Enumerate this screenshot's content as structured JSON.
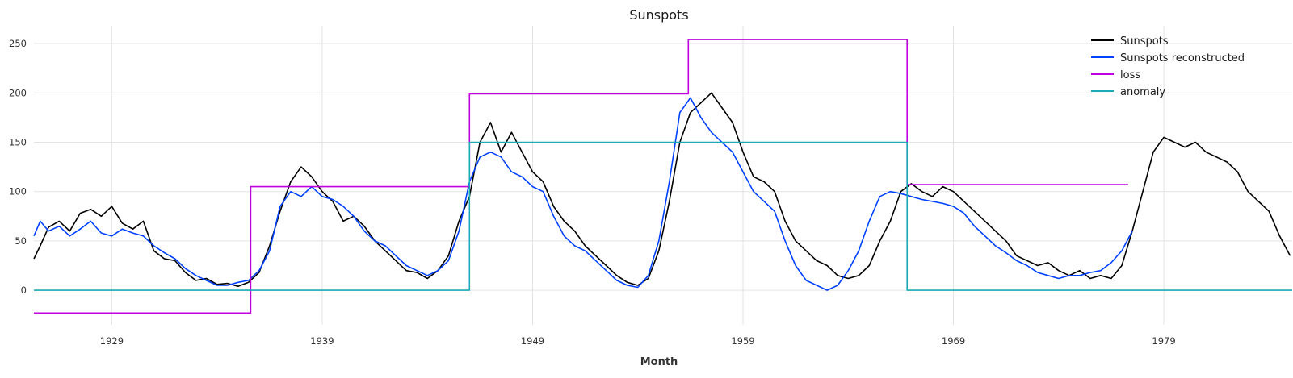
{
  "chart_data": {
    "type": "line",
    "title": "Sunspots",
    "xlabel": "Month",
    "ylabel": "",
    "xlim": [
      1925.3,
      1985.1
    ],
    "ylim": [
      -35,
      268
    ],
    "grid": true,
    "legend_position": "top-right",
    "x_ticks": [
      {
        "value": 1929,
        "label": "1929"
      },
      {
        "value": 1939,
        "label": "1939"
      },
      {
        "value": 1949,
        "label": "1949"
      },
      {
        "value": 1959,
        "label": "1959"
      },
      {
        "value": 1969,
        "label": "1969"
      },
      {
        "value": 1979,
        "label": "1979"
      }
    ],
    "y_ticks": [
      {
        "value": 0,
        "label": "0"
      },
      {
        "value": 50,
        "label": "50"
      },
      {
        "value": 100,
        "label": "100"
      },
      {
        "value": 150,
        "label": "150"
      },
      {
        "value": 200,
        "label": "200"
      },
      {
        "value": 250,
        "label": "250"
      }
    ],
    "series": [
      {
        "name": "Sunspots",
        "color": "#000000",
        "x": [
          1925.3,
          1925.6,
          1926.0,
          1926.5,
          1927.0,
          1927.5,
          1928.0,
          1928.5,
          1929.0,
          1929.5,
          1930.0,
          1930.5,
          1931.0,
          1931.5,
          1932.0,
          1932.5,
          1933.0,
          1933.5,
          1934.0,
          1934.5,
          1935.0,
          1935.5,
          1936.0,
          1936.5,
          1937.0,
          1937.5,
          1938.0,
          1938.5,
          1939.0,
          1939.5,
          1940.0,
          1940.5,
          1941.0,
          1941.5,
          1942.0,
          1942.5,
          1943.0,
          1943.5,
          1944.0,
          1944.5,
          1945.0,
          1945.5,
          1946.0,
          1946.5,
          1947.0,
          1947.5,
          1948.0,
          1948.5,
          1949.0,
          1949.5,
          1950.0,
          1950.5,
          1951.0,
          1951.5,
          1952.0,
          1952.5,
          1953.0,
          1953.5,
          1954.0,
          1954.5,
          1955.0,
          1955.5,
          1956.0,
          1956.5,
          1957.0,
          1957.5,
          1958.0,
          1958.5,
          1959.0,
          1959.5,
          1960.0,
          1960.5,
          1961.0,
          1961.5,
          1962.0,
          1962.5,
          1963.0,
          1963.5,
          1964.0,
          1964.5,
          1965.0,
          1965.5,
          1966.0,
          1966.5,
          1967.0,
          1967.5,
          1968.0,
          1968.5,
          1969.0,
          1969.5,
          1970.0,
          1970.5,
          1971.0,
          1971.5,
          1972.0,
          1972.5,
          1973.0,
          1973.5,
          1974.0,
          1974.5,
          1975.0,
          1975.5,
          1976.0,
          1976.5,
          1977.0,
          1977.5,
          1978.0,
          1978.5,
          1979.0,
          1979.5,
          1980.0,
          1980.5,
          1981.0,
          1981.5,
          1982.0,
          1982.5,
          1983.0,
          1983.5,
          1984.0,
          1984.5,
          1985.0
        ],
        "values": [
          32,
          45,
          64,
          70,
          60,
          78,
          82,
          75,
          85,
          68,
          62,
          70,
          40,
          32,
          30,
          18,
          10,
          12,
          6,
          7,
          4,
          8,
          18,
          45,
          80,
          110,
          125,
          115,
          100,
          90,
          70,
          75,
          65,
          50,
          40,
          30,
          20,
          18,
          12,
          20,
          35,
          70,
          95,
          150,
          170,
          140,
          160,
          140,
          120,
          110,
          85,
          70,
          60,
          45,
          35,
          25,
          15,
          8,
          5,
          12,
          40,
          90,
          150,
          180,
          190,
          200,
          185,
          170,
          140,
          115,
          110,
          100,
          70,
          50,
          40,
          30,
          25,
          15,
          12,
          15,
          25,
          50,
          70,
          100,
          108,
          100,
          95,
          105,
          100,
          90,
          80,
          70,
          60,
          50,
          35,
          30,
          25,
          28,
          20,
          15,
          20,
          12,
          15,
          12,
          25,
          60,
          100,
          140,
          155,
          150,
          145,
          150,
          140,
          135,
          130,
          120,
          100,
          90,
          80,
          55,
          35
        ]
      },
      {
        "name": "Sunspots reconstructed",
        "color": "#0041ff",
        "x": [
          1925.3,
          1925.6,
          1926.0,
          1926.5,
          1927.0,
          1927.5,
          1928.0,
          1928.5,
          1929.0,
          1929.5,
          1930.0,
          1930.5,
          1931.0,
          1931.5,
          1932.0,
          1932.5,
          1933.0,
          1933.5,
          1934.0,
          1934.5,
          1935.0,
          1935.5,
          1936.0,
          1936.5,
          1937.0,
          1937.5,
          1938.0,
          1938.5,
          1939.0,
          1939.5,
          1940.0,
          1940.5,
          1941.0,
          1941.5,
          1942.0,
          1942.5,
          1943.0,
          1943.5,
          1944.0,
          1944.5,
          1945.0,
          1945.5,
          1946.0,
          1946.5,
          1947.0,
          1947.5,
          1948.0,
          1948.5,
          1949.0,
          1949.5,
          1950.0,
          1950.5,
          1951.0,
          1951.5,
          1952.0,
          1952.5,
          1953.0,
          1953.5,
          1954.0,
          1954.5,
          1955.0,
          1955.5,
          1956.0,
          1956.5,
          1957.0,
          1957.5,
          1958.0,
          1958.5,
          1959.0,
          1959.5,
          1960.0,
          1960.5,
          1961.0,
          1961.5,
          1962.0,
          1962.5,
          1963.0,
          1963.5,
          1964.0,
          1964.5,
          1965.0,
          1965.5,
          1966.0,
          1966.5,
          1967.0,
          1967.5,
          1968.0,
          1968.5,
          1969.0,
          1969.5,
          1970.0,
          1970.5,
          1971.0,
          1971.5,
          1972.0,
          1972.5,
          1973.0,
          1973.5,
          1974.0,
          1974.5,
          1975.0,
          1975.5,
          1976.0,
          1976.5,
          1977.0,
          1977.5
        ],
        "values": [
          55,
          70,
          60,
          65,
          55,
          62,
          70,
          58,
          55,
          62,
          58,
          55,
          45,
          38,
          32,
          22,
          15,
          10,
          5,
          5,
          8,
          10,
          20,
          40,
          85,
          100,
          95,
          105,
          95,
          92,
          85,
          75,
          60,
          50,
          45,
          35,
          25,
          20,
          15,
          20,
          30,
          60,
          110,
          135,
          140,
          135,
          120,
          115,
          105,
          100,
          75,
          55,
          45,
          40,
          30,
          20,
          10,
          5,
          3,
          15,
          50,
          110,
          180,
          195,
          175,
          160,
          150,
          140,
          120,
          100,
          90,
          80,
          50,
          25,
          10,
          5,
          0,
          5,
          20,
          40,
          70,
          95,
          100,
          98,
          95,
          92,
          90,
          88,
          85,
          78,
          65,
          55,
          45,
          38,
          30,
          25,
          18,
          15,
          12,
          15,
          15,
          18,
          20,
          28,
          40,
          60
        ]
      },
      {
        "name": "loss",
        "color": "#c000e0",
        "step": true,
        "x": [
          1925.3,
          1935.6,
          1935.6,
          1946.0,
          1946.0,
          1956.4,
          1956.4,
          1966.8,
          1966.8,
          1977.3
        ],
        "values": [
          -23,
          -23,
          105,
          105,
          199,
          199,
          254,
          254,
          107,
          107
        ]
      },
      {
        "name": "anomaly",
        "color": "#1aaab8",
        "step": true,
        "x": [
          1925.3,
          1946.0,
          1946.0,
          1966.8,
          1966.8,
          1985.1
        ],
        "values": [
          0,
          0,
          150,
          150,
          0,
          0
        ]
      }
    ]
  }
}
